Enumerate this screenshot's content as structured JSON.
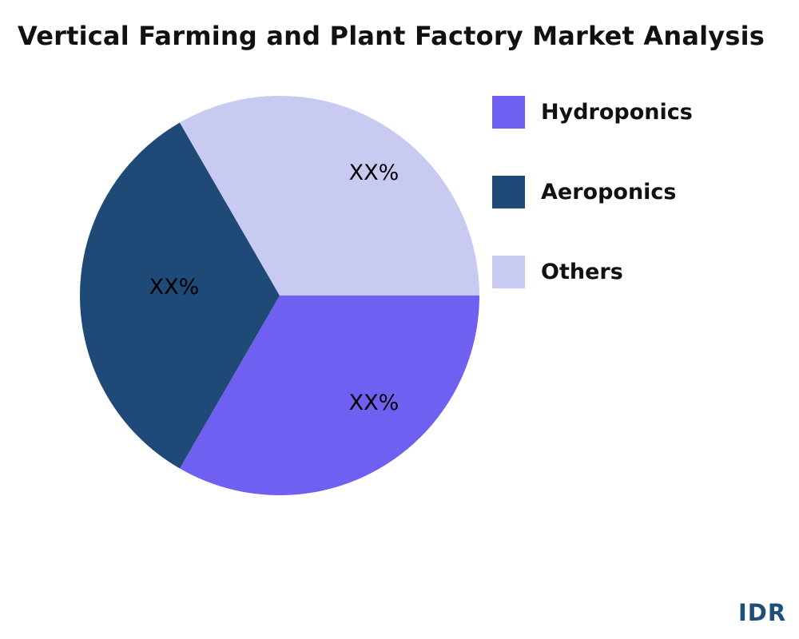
{
  "chart_data": {
    "type": "pie",
    "title": "Vertical Farming and Plant Factory Market Analysis",
    "slices": [
      {
        "name": "Hydroponics",
        "value": 33.33,
        "label": "XX%",
        "color": "#6f60f2"
      },
      {
        "name": "Aeroponics",
        "value": 33.33,
        "label": "XX%",
        "color": "#1f4a78"
      },
      {
        "name": "Others",
        "value": 33.33,
        "label": "XX%",
        "color": "#c8caf1"
      }
    ],
    "start_angle": "3 o'clock",
    "direction": "clockwise",
    "legend_placement": "right"
  },
  "logo": "IDR"
}
